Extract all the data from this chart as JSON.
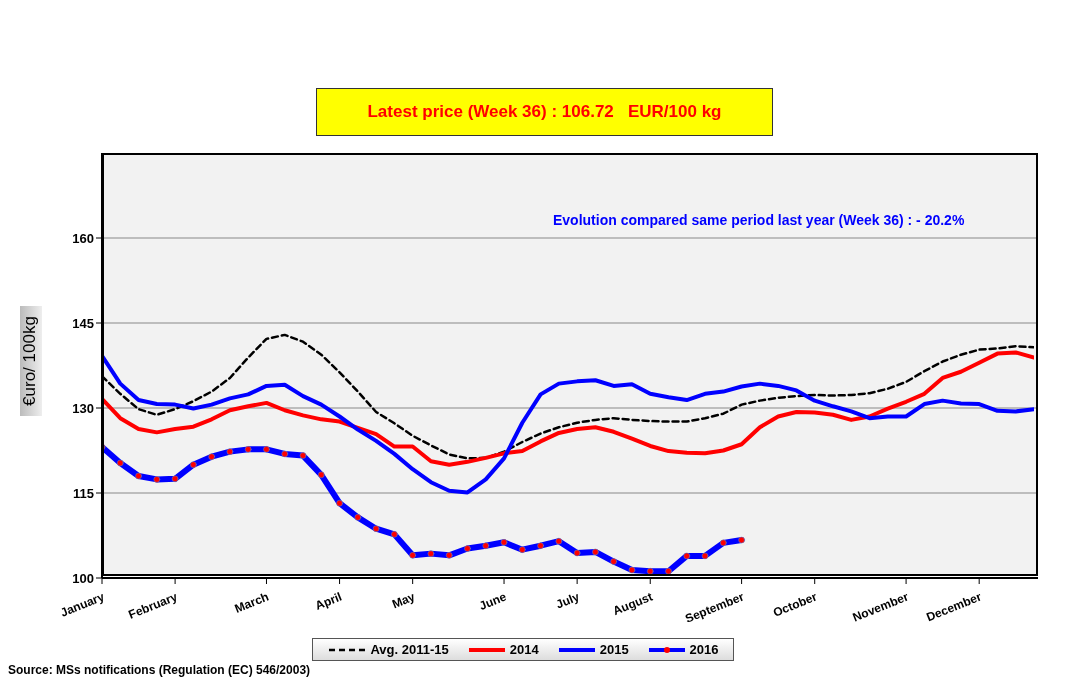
{
  "chart_data": {
    "type": "line",
    "title": "Latest price (Week 36) : 106.72   EUR/100 kg",
    "ylabel": "€uro/ 100kg",
    "annotations": [
      "Evolution compared same period last year (Week 36) : - 20.2%",
      "Source: MSs notifications (Regulation (EC) 546/2003)"
    ],
    "categories": [
      "January",
      null,
      null,
      null,
      "February",
      null,
      null,
      null,
      null,
      "March",
      null,
      null,
      null,
      "April",
      null,
      null,
      null,
      "May",
      null,
      null,
      null,
      null,
      "June",
      null,
      null,
      null,
      "July",
      null,
      null,
      null,
      "August",
      null,
      null,
      null,
      null,
      "September",
      null,
      null,
      null,
      "October",
      null,
      null,
      null,
      null,
      "November",
      null,
      null,
      null,
      "December",
      null,
      null,
      null
    ],
    "ylim": [
      100,
      175
    ],
    "yticks": [
      100,
      115,
      130,
      145,
      160
    ],
    "grid": "y",
    "legend": "bottom",
    "series": [
      {
        "name": "Avg. 2011-15",
        "color": "#000000",
        "line_style": "dashed",
        "marker": "none",
        "values": [
          135.6,
          132.5,
          129.8,
          128.8,
          129.8,
          131.2,
          132.9,
          135.3,
          138.9,
          142.2,
          142.9,
          141.7,
          139.4,
          136.3,
          132.9,
          129.3,
          127.3,
          125.1,
          123.4,
          121.8,
          121.1,
          121.2,
          122.3,
          124.0,
          125.5,
          126.6,
          127.4,
          127.9,
          128.2,
          127.9,
          127.7,
          127.6,
          127.6,
          128.2,
          129.0,
          130.6,
          131.3,
          131.8,
          132.1,
          132.3,
          132.2,
          132.3,
          132.6,
          133.4,
          134.6,
          136.5,
          138.2,
          139.4,
          140.3,
          140.5,
          140.9,
          140.7
        ]
      },
      {
        "name": "2014",
        "color": "#ff0000",
        "line_style": "solid",
        "marker": "none",
        "values": [
          131.6,
          128.2,
          126.3,
          125.7,
          126.3,
          126.7,
          128.0,
          129.6,
          130.3,
          130.9,
          129.6,
          128.7,
          128.0,
          127.6,
          126.5,
          125.4,
          123.2,
          123.2,
          120.6,
          120.0,
          120.5,
          121.2,
          122.0,
          122.4,
          124.1,
          125.6,
          126.3,
          126.6,
          125.8,
          124.6,
          123.3,
          122.4,
          122.1,
          122.0,
          122.5,
          123.6,
          126.6,
          128.5,
          129.3,
          129.2,
          128.8,
          127.9,
          128.5,
          129.9,
          131.1,
          132.5,
          135.3,
          136.4,
          138.0,
          139.6,
          139.8,
          138.9
        ]
      },
      {
        "name": "2015",
        "color": "#0000ff",
        "line_style": "solid",
        "marker": "none",
        "values": [
          139.2,
          134.3,
          131.4,
          130.7,
          130.6,
          129.9,
          130.6,
          131.7,
          132.4,
          133.9,
          134.1,
          132.1,
          130.6,
          128.5,
          126.2,
          124.2,
          121.9,
          119.2,
          116.9,
          115.4,
          115.1,
          117.4,
          121.1,
          127.4,
          132.4,
          134.3,
          134.7,
          134.9,
          133.9,
          134.2,
          132.5,
          131.9,
          131.4,
          132.5,
          132.9,
          133.8,
          134.3,
          133.9,
          133.1,
          131.3,
          130.3,
          129.4,
          128.2,
          128.5,
          128.5,
          130.7,
          131.3,
          130.8,
          130.7,
          129.5,
          129.4,
          129.8
        ]
      },
      {
        "name": "2016",
        "color": "#0000ff",
        "line_style": "solid",
        "marker": "circle",
        "values": [
          123.1,
          120.3,
          118.0,
          117.4,
          117.5,
          120.0,
          121.4,
          122.3,
          122.7,
          122.7,
          121.9,
          121.6,
          118.2,
          113.2,
          110.7,
          108.7,
          107.7,
          104.0,
          104.3,
          104.0,
          105.2,
          105.7,
          106.3,
          105.0,
          105.7,
          106.5,
          104.4,
          104.6,
          102.9,
          101.4,
          101.2,
          101.2,
          103.9,
          103.9,
          106.2,
          106.7,
          null,
          null,
          null,
          null,
          null,
          null,
          null,
          null,
          null,
          null,
          null,
          null,
          null,
          null,
          null,
          null
        ]
      }
    ]
  }
}
